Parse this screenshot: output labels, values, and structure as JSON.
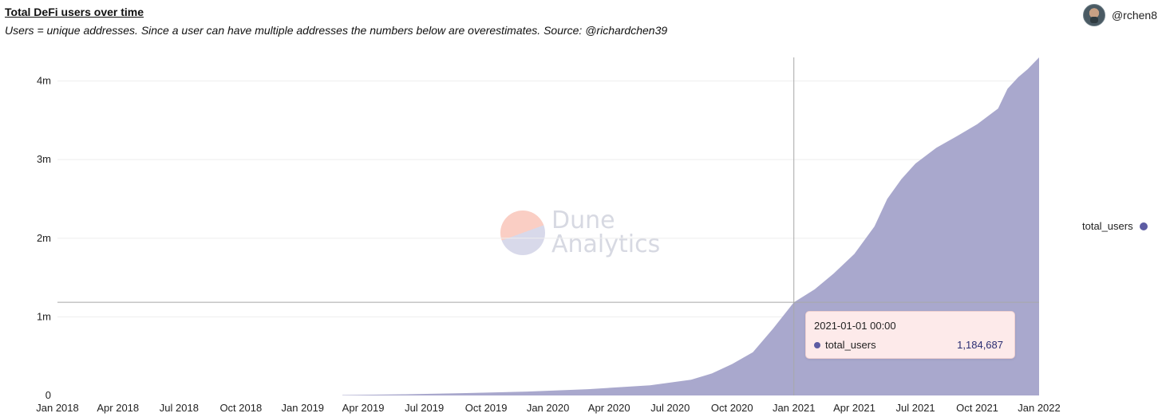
{
  "header": {
    "title": "Total DeFi users over time",
    "subtitle": "Users = unique addresses. Since a user can have multiple addresses the numbers below are overestimates. Source: @richardchen39",
    "author": "@rchen8"
  },
  "watermark": {
    "line1": "Dune",
    "line2": "Analytics"
  },
  "colors": {
    "series": "#a9a8cd",
    "dot": "#5d5ca3",
    "grid": "#eeeeee",
    "crosshair": "#a8a8a8"
  },
  "tooltip": {
    "date": "2021-01-01 00:00",
    "series_name": "total_users",
    "value": "1,184,687"
  },
  "chart_data": {
    "type": "area",
    "title": "Total DeFi users over time",
    "xlabel": "",
    "ylabel": "",
    "x_ticks": [
      "Jan 2018",
      "Apr 2018",
      "Jul 2018",
      "Oct 2018",
      "Jan 2019",
      "Apr 2019",
      "Jul 2019",
      "Oct 2019",
      "Jan 2020",
      "Apr 2020",
      "Jul 2020",
      "Oct 2020",
      "Jan 2021",
      "Apr 2021",
      "Jul 2021",
      "Oct 2021",
      "Jan 2022"
    ],
    "y_ticks": [
      {
        "value": 0,
        "label": "0"
      },
      {
        "value": 1000000,
        "label": "1m"
      },
      {
        "value": 2000000,
        "label": "2m"
      },
      {
        "value": 3000000,
        "label": "3m"
      },
      {
        "value": 4000000,
        "label": "4m"
      }
    ],
    "xlim": [
      "2018-01-01",
      "2022-01-01"
    ],
    "ylim": [
      0,
      4300000
    ],
    "grid": true,
    "legend_position": "right",
    "highlight": {
      "x": "2021-01-01",
      "y": 1184687
    },
    "series": [
      {
        "name": "total_users",
        "x": [
          "2019-03-01",
          "2019-06-01",
          "2019-09-01",
          "2019-12-01",
          "2020-03-01",
          "2020-06-01",
          "2020-08-01",
          "2020-09-01",
          "2020-10-01",
          "2020-11-01",
          "2020-12-01",
          "2021-01-01",
          "2021-02-01",
          "2021-03-01",
          "2021-04-01",
          "2021-05-01",
          "2021-05-20",
          "2021-06-10",
          "2021-07-01",
          "2021-08-01",
          "2021-09-01",
          "2021-10-01",
          "2021-11-01",
          "2021-11-15",
          "2021-12-01",
          "2021-12-15",
          "2022-01-01"
        ],
        "y": [
          5000,
          15000,
          30000,
          50000,
          80000,
          130000,
          200000,
          280000,
          400000,
          550000,
          850000,
          1184687,
          1350000,
          1550000,
          1800000,
          2150000,
          2500000,
          2750000,
          2950000,
          3150000,
          3300000,
          3450000,
          3650000,
          3900000,
          4050000,
          4150000,
          4300000
        ]
      }
    ]
  }
}
